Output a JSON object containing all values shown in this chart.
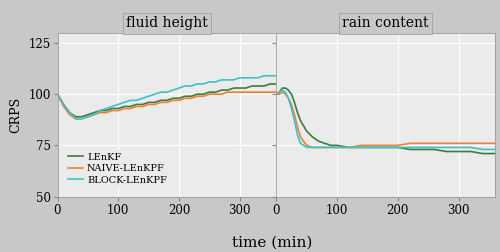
{
  "title_left": "fluid height",
  "title_right": "rain content",
  "xlabel": "time (min)",
  "ylabel": "CRPS",
  "ylim": [
    50,
    130
  ],
  "yticks": [
    50,
    75,
    100,
    125
  ],
  "xlim": [
    0,
    360
  ],
  "xticks": [
    0,
    100,
    200,
    300
  ],
  "colors": {
    "LEnKF": "#3a7d44",
    "NAIVE-LEnKPF": "#f08030",
    "BLOCK-LEnKPF": "#40c0c8"
  },
  "legend_labels": [
    "LEnKF",
    "NAIVE-LEnKPF",
    "BLOCK-LEnKPF"
  ],
  "bg_color": "#c8c8c8",
  "plot_bg_color": "#ebebeb",
  "header_color": "#c8c8c8",
  "grid_color": "#ffffff",
  "fluid_height": {
    "t": [
      0,
      10,
      20,
      30,
      40,
      50,
      60,
      70,
      80,
      90,
      100,
      110,
      120,
      130,
      140,
      150,
      160,
      170,
      180,
      190,
      200,
      210,
      220,
      230,
      240,
      250,
      260,
      270,
      280,
      290,
      300,
      310,
      320,
      330,
      340,
      350,
      360
    ],
    "LEnKF": [
      100,
      95,
      91,
      89,
      89,
      90,
      91,
      92,
      92,
      93,
      93,
      94,
      94,
      95,
      95,
      96,
      96,
      97,
      97,
      98,
      98,
      99,
      99,
      100,
      100,
      101,
      101,
      102,
      102,
      103,
      103,
      103,
      104,
      104,
      104,
      105,
      105
    ],
    "NAIVE-LEnKPF": [
      100,
      94,
      90,
      88,
      88,
      89,
      90,
      91,
      91,
      92,
      92,
      93,
      93,
      94,
      94,
      95,
      95,
      96,
      96,
      97,
      97,
      98,
      98,
      99,
      99,
      100,
      100,
      100,
      101,
      101,
      101,
      101,
      101,
      101,
      101,
      101,
      101
    ],
    "BLOCK-LEnKPF": [
      100,
      95,
      91,
      88,
      88,
      89,
      90,
      92,
      93,
      94,
      95,
      96,
      97,
      97,
      98,
      99,
      100,
      101,
      101,
      102,
      103,
      104,
      104,
      105,
      105,
      106,
      106,
      107,
      107,
      107,
      108,
      108,
      108,
      108,
      109,
      109,
      109
    ]
  },
  "rain_content": {
    "t": [
      0,
      5,
      10,
      15,
      20,
      25,
      30,
      35,
      40,
      50,
      60,
      70,
      80,
      90,
      100,
      120,
      140,
      160,
      180,
      200,
      220,
      240,
      260,
      280,
      300,
      320,
      340,
      360
    ],
    "LEnKF": [
      100,
      101,
      103,
      103,
      102,
      100,
      96,
      91,
      87,
      82,
      79,
      77,
      76,
      75,
      75,
      74,
      74,
      74,
      74,
      74,
      73,
      73,
      73,
      72,
      72,
      72,
      71,
      71
    ],
    "NAIVE-LEnKPF": [
      100,
      100,
      101,
      100,
      98,
      95,
      90,
      84,
      79,
      75,
      74,
      74,
      74,
      74,
      74,
      74,
      75,
      75,
      75,
      75,
      76,
      76,
      76,
      76,
      76,
      76,
      76,
      76
    ],
    "BLOCK-LEnKPF": [
      100,
      101,
      102,
      101,
      98,
      93,
      87,
      80,
      76,
      74,
      74,
      74,
      74,
      74,
      74,
      74,
      74,
      74,
      74,
      74,
      74,
      74,
      74,
      74,
      74,
      74,
      73,
      73
    ]
  }
}
